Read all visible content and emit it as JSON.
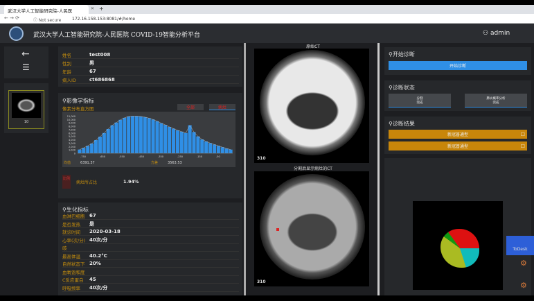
{
  "browser": {
    "tab_title": "武汉大学人工智能研究院-人民医",
    "address_secure": "Not secure",
    "url": "172.16.158.153:8081/#/home"
  },
  "header": {
    "title": "武汉大学人工智能研究院-人民医院 COVID-19智能分析平台",
    "user": "admin"
  },
  "sidebar": {
    "thumb_label": "10"
  },
  "patient": [
    {
      "label": "姓名",
      "value": "test008"
    },
    {
      "label": "性别",
      "value": "男"
    },
    {
      "label": "年龄",
      "value": "67"
    },
    {
      "label": "病人ID",
      "value": "ct686868"
    }
  ],
  "imaging": {
    "title": "影像学指标",
    "subtitle": "像素分布直方图",
    "tabs": [
      "全部",
      "病灶"
    ],
    "mean_label": "均值",
    "mean": "6391.37",
    "var_label": "方差",
    "var": "3563.53",
    "ratio_badge": "比例",
    "ratio_label": "病灶所占比",
    "ratio": "1.94%"
  },
  "chart_data": {
    "type": "bar",
    "yticks": [
      "0",
      "1,000",
      "2,000",
      "3,000",
      "4,000",
      "5,000",
      "6,000",
      "7,000",
      "8,000",
      "9,000",
      "10,000",
      "11,000"
    ],
    "ylim": [
      0,
      11500
    ],
    "xticks": [
      "-750",
      "-650",
      "-550",
      "-450",
      "-350",
      "-250",
      "-150",
      "-50"
    ],
    "values": [
      1100,
      1600,
      2200,
      2900,
      3900,
      4900,
      6000,
      7200,
      8300,
      9100,
      9900,
      10500,
      10900,
      11000,
      11000,
      10900,
      10700,
      10400,
      10000,
      9500,
      8900,
      8400,
      7800,
      7300,
      6800,
      6400,
      6000,
      8300,
      6300,
      5000,
      4100,
      3500,
      3000,
      2600,
      2200,
      1800,
      1400,
      1100
    ],
    "color": "#2f8fe6"
  },
  "bio": {
    "title": "生化指标",
    "items": [
      {
        "label": "血淋巴细胞",
        "value": "67"
      },
      {
        "label": "是否发热",
        "value": "是"
      },
      {
        "label": "就诊时间",
        "value": "2020-03-18"
      },
      {
        "label": "心率(次/分)",
        "value": "40次/分"
      },
      {
        "label": "咳",
        "value": ""
      },
      {
        "label": "最高体温",
        "value": "40.2°C"
      },
      {
        "label": "自然状态下",
        "value": "20%"
      },
      {
        "label": "血氧饱和度",
        "value": ""
      },
      {
        "label": "C反应蛋白",
        "value": "45"
      },
      {
        "label": "呼吸频率",
        "value": "40次/分"
      }
    ]
  },
  "ct": {
    "original_title": "原始CT",
    "original_slice": "310",
    "seg_title": "分割后显示病灶的CT",
    "seg_slice": "310"
  },
  "diagnosis": {
    "start_title": "开始诊断",
    "start_button": "开始诊断",
    "status_title": "诊断状态",
    "status": [
      {
        "name": "分割",
        "state": "完成"
      },
      {
        "name": "肺炎概率分析",
        "state": "完成"
      }
    ],
    "result_title": "诊断结果",
    "results": [
      "新冠普通型",
      "新冠普通型"
    ]
  },
  "todesk": {
    "label": "ToDesk"
  },
  "colors": {
    "accent": "#2f8fe6",
    "label": "#c8900e",
    "result": "#c8860a"
  }
}
